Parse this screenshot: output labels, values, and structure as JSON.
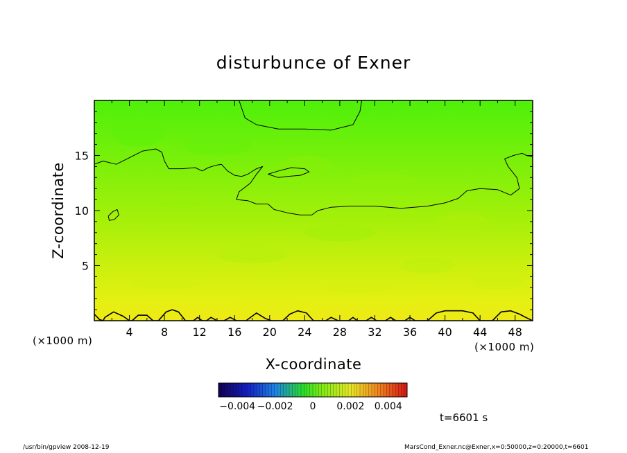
{
  "chart_data": {
    "type": "heatmap",
    "title": "disturbunce of Exner",
    "xlabel": "X-coordinate",
    "ylabel": "Z-coordinate",
    "x_unit": "(×1000 m)",
    "y_unit": "(×1000 m)",
    "xlim": [
      0,
      50
    ],
    "ylim": [
      0,
      20
    ],
    "x_ticks": [
      4,
      8,
      12,
      16,
      20,
      24,
      28,
      32,
      36,
      40,
      44,
      48
    ],
    "y_ticks": [
      5,
      10,
      15
    ],
    "colorbar": {
      "min": -0.005,
      "max": 0.005,
      "tick_values": [
        -0.004,
        -0.002,
        0,
        0.002,
        0.004
      ],
      "tick_labels": [
        "−0.004",
        "−0.002",
        "0",
        "0.002",
        "0.004"
      ]
    },
    "field_profile": {
      "z": [
        0,
        2,
        4,
        6,
        8,
        10,
        12,
        14,
        16,
        18,
        20
      ],
      "value": [
        0.0012,
        0.0009,
        0.0006,
        0.0004,
        0.0002,
        0.0001,
        0.0,
        -0.0001,
        -0.0002,
        -0.0003,
        -0.0004
      ]
    },
    "contours": [
      {
        "name": "upper",
        "points": [
          [
            0,
            14.2
          ],
          [
            1,
            14.5
          ],
          [
            2.5,
            14.2
          ],
          [
            4,
            14.8
          ],
          [
            5.5,
            15.4
          ],
          [
            7,
            15.6
          ],
          [
            7.7,
            15.3
          ],
          [
            8,
            14.5
          ],
          [
            8.5,
            13.8
          ],
          [
            10,
            13.8
          ],
          [
            11.5,
            13.9
          ],
          [
            12.3,
            13.6
          ],
          [
            13,
            13.9
          ],
          [
            13.8,
            14.1
          ],
          [
            14.5,
            14.2
          ],
          [
            15.2,
            13.6
          ],
          [
            16,
            13.2
          ],
          [
            16.8,
            13.1
          ],
          [
            17.5,
            13.3
          ],
          [
            18.5,
            13.8
          ],
          [
            19.2,
            14.0
          ],
          [
            18.5,
            13.3
          ],
          [
            17.8,
            12.5
          ],
          [
            16.5,
            11.7
          ],
          [
            16.2,
            11.0
          ],
          [
            17.5,
            10.9
          ],
          [
            18.5,
            10.6
          ],
          [
            19.8,
            10.6
          ],
          [
            20.5,
            10.1
          ],
          [
            22,
            9.8
          ],
          [
            23.5,
            9.6
          ],
          [
            24.8,
            9.6
          ],
          [
            25.5,
            10.0
          ],
          [
            27,
            10.3
          ],
          [
            29,
            10.4
          ],
          [
            32,
            10.4
          ],
          [
            35,
            10.2
          ],
          [
            38,
            10.4
          ],
          [
            40,
            10.7
          ],
          [
            41.5,
            11.1
          ],
          [
            42.5,
            11.8
          ],
          [
            44,
            12.0
          ],
          [
            46,
            11.9
          ],
          [
            47.5,
            11.4
          ],
          [
            48.5,
            12.0
          ],
          [
            48.2,
            13.0
          ],
          [
            47.2,
            14.0
          ],
          [
            46.8,
            14.7
          ],
          [
            47.8,
            15.0
          ],
          [
            48.8,
            15.2
          ],
          [
            49.3,
            15.0
          ],
          [
            50,
            14.9
          ]
        ]
      },
      {
        "name": "lens",
        "points": [
          [
            19.8,
            13.3
          ],
          [
            21,
            13.6
          ],
          [
            22.5,
            13.9
          ],
          [
            24,
            13.8
          ],
          [
            24.5,
            13.5
          ],
          [
            23.5,
            13.2
          ],
          [
            22,
            13.1
          ],
          [
            21,
            13.0
          ],
          [
            19.8,
            13.3
          ]
        ]
      },
      {
        "name": "top",
        "points": [
          [
            16.5,
            20
          ],
          [
            17.2,
            18.4
          ],
          [
            18.5,
            17.8
          ],
          [
            21,
            17.4
          ],
          [
            24,
            17.4
          ],
          [
            27,
            17.3
          ],
          [
            29.5,
            17.8
          ],
          [
            30.3,
            19.0
          ],
          [
            30.5,
            20
          ]
        ]
      },
      {
        "name": "small-loop",
        "points": [
          [
            1.6,
            9.5
          ],
          [
            2.1,
            9.9
          ],
          [
            2.6,
            10.1
          ],
          [
            2.8,
            9.6
          ],
          [
            2.3,
            9.2
          ],
          [
            1.7,
            9.1
          ],
          [
            1.6,
            9.5
          ]
        ]
      },
      {
        "name": "bottom",
        "points": [
          [
            0,
            0.6
          ],
          [
            0.6,
            0.1
          ],
          [
            1,
            0
          ],
          [
            1.2,
            0.3
          ],
          [
            2.2,
            0.8
          ],
          [
            3.3,
            0.4
          ],
          [
            4,
            0
          ],
          [
            4.3,
            0
          ],
          [
            5,
            0.5
          ],
          [
            6,
            0.5
          ],
          [
            6.7,
            0
          ],
          [
            7.3,
            0
          ],
          [
            8.2,
            0.8
          ],
          [
            8.9,
            1.0
          ],
          [
            9.6,
            0.8
          ],
          [
            10.4,
            0
          ],
          [
            11.3,
            0
          ],
          [
            11.8,
            0.3
          ],
          [
            12.3,
            0
          ],
          [
            12.8,
            0
          ],
          [
            13.3,
            0.3
          ],
          [
            14,
            0
          ],
          [
            14.8,
            0
          ],
          [
            15.5,
            0.3
          ],
          [
            16.2,
            0
          ],
          [
            17.3,
            0
          ],
          [
            18.5,
            0.7
          ],
          [
            19.5,
            0.2
          ],
          [
            20.2,
            0
          ],
          [
            21.5,
            0
          ],
          [
            22.3,
            0.6
          ],
          [
            23.2,
            0.9
          ],
          [
            24.2,
            0.7
          ],
          [
            25,
            0
          ],
          [
            26.4,
            0
          ],
          [
            27,
            0.3
          ],
          [
            27.8,
            0
          ],
          [
            29,
            0
          ],
          [
            29.5,
            0.3
          ],
          [
            30,
            0
          ],
          [
            31,
            0
          ],
          [
            31.6,
            0.3
          ],
          [
            32.2,
            0
          ],
          [
            33.2,
            0
          ],
          [
            33.8,
            0.3
          ],
          [
            34.4,
            0
          ],
          [
            35.4,
            0
          ],
          [
            36,
            0.3
          ],
          [
            36.6,
            0
          ],
          [
            38,
            0
          ],
          [
            39,
            0.7
          ],
          [
            40,
            0.9
          ],
          [
            42,
            0.9
          ],
          [
            43.2,
            0.7
          ],
          [
            44,
            0
          ],
          [
            45.4,
            0
          ],
          [
            46.4,
            0.8
          ],
          [
            47.5,
            0.9
          ],
          [
            48.5,
            0.6
          ],
          [
            49.2,
            0.3
          ],
          [
            50,
            0
          ]
        ]
      }
    ]
  },
  "annotations": {
    "time": "t=6601 s",
    "footer_left": "/usr/bin/gpview   2008-12-19",
    "footer_right": "MarsCond_Exner.nc@Exner,x=0:50000,z=0:20000,t=6601"
  }
}
